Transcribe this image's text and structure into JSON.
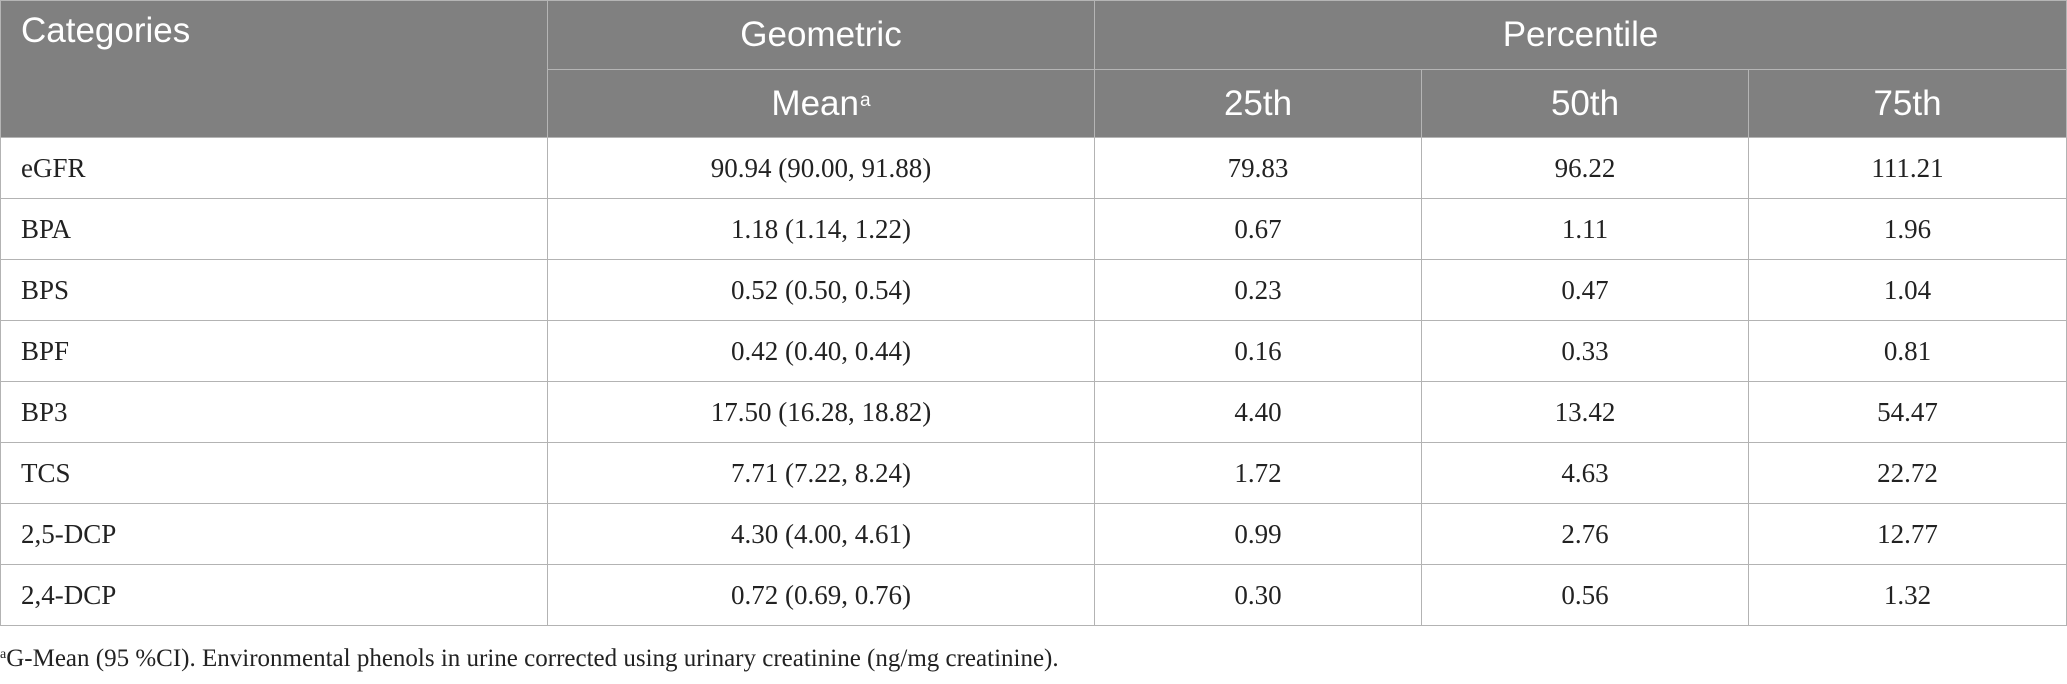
{
  "header": {
    "categories": "Categories",
    "geometric": "Geometric",
    "percentile": "Percentile",
    "mean": "Mean",
    "mean_note": "a",
    "p25": "25th",
    "p50": "50th",
    "p75": "75th"
  },
  "rows": [
    {
      "category": "eGFR",
      "mean": "90.94 (90.00, 91.88)",
      "p25": "79.83",
      "p50": "96.22",
      "p75": "111.21"
    },
    {
      "category": "BPA",
      "mean": "1.18 (1.14, 1.22)",
      "p25": "0.67",
      "p50": "1.11",
      "p75": "1.96"
    },
    {
      "category": "BPS",
      "mean": "0.52 (0.50, 0.54)",
      "p25": "0.23",
      "p50": "0.47",
      "p75": "1.04"
    },
    {
      "category": "BPF",
      "mean": "0.42 (0.40, 0.44)",
      "p25": "0.16",
      "p50": "0.33",
      "p75": "0.81"
    },
    {
      "category": "BP3",
      "mean": "17.50 (16.28, 18.82)",
      "p25": "4.40",
      "p50": "13.42",
      "p75": "54.47"
    },
    {
      "category": "TCS",
      "mean": "7.71 (7.22, 8.24)",
      "p25": "1.72",
      "p50": "4.63",
      "p75": "22.72"
    },
    {
      "category": "2,5-DCP",
      "mean": "4.30 (4.00, 4.61)",
      "p25": "0.99",
      "p50": "2.76",
      "p75": "12.77"
    },
    {
      "category": "2,4-DCP",
      "mean": "0.72 (0.69, 0.76)",
      "p25": "0.30",
      "p50": "0.56",
      "p75": "1.32"
    }
  ],
  "footnote": {
    "marker": "a",
    "text": "G-Mean (95 %CI). Environmental phenols in urine corrected using urinary creatinine (ng/mg creatinine)."
  }
}
